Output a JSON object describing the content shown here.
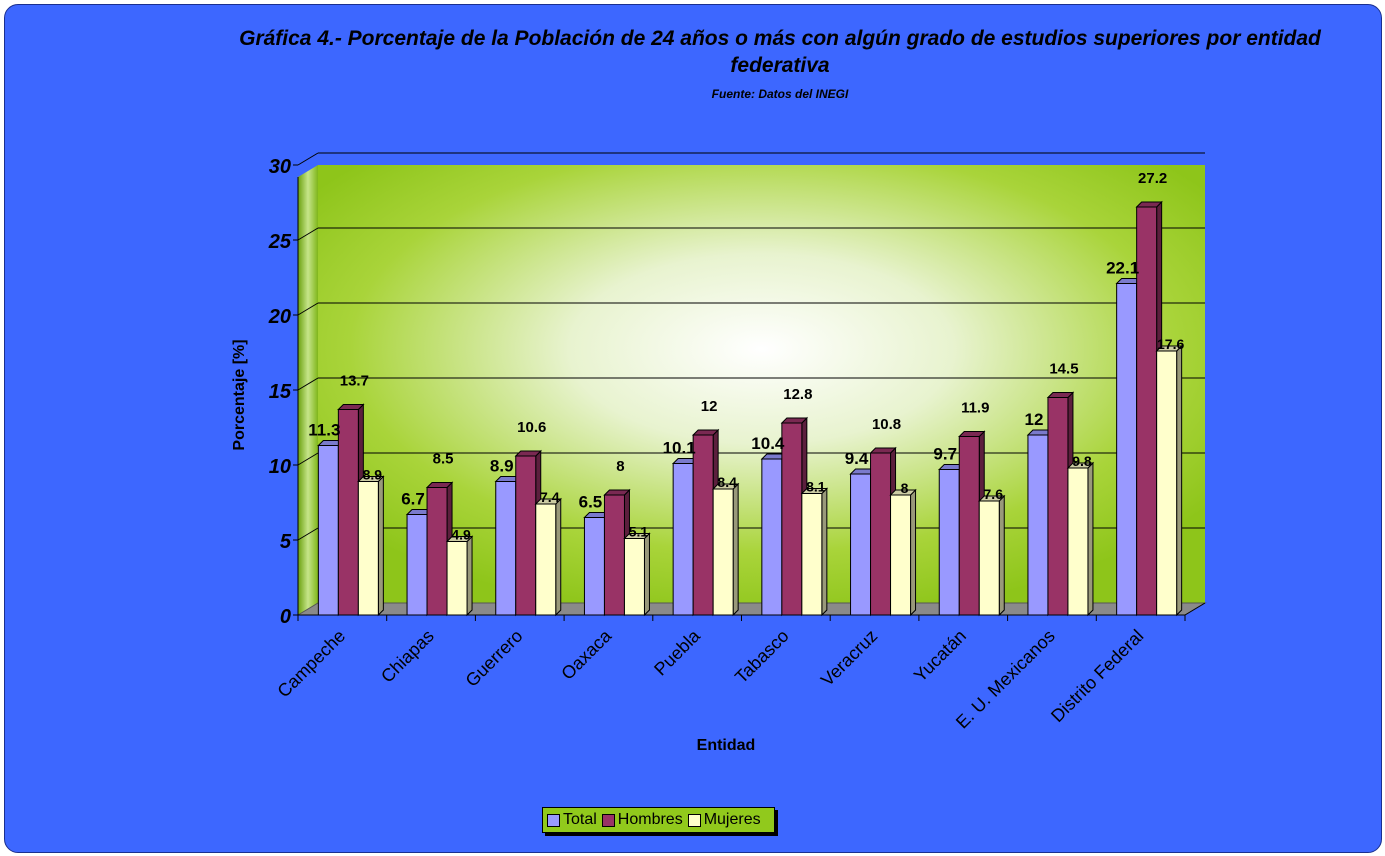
{
  "chart_data": {
    "type": "bar",
    "title": "Gráfica 4.- Porcentaje de la Población de 24 años o más con algún grado de estudios superiores por entidad federativa",
    "subtitle": "Fuente: Datos del INEGI",
    "xlabel": "Entidad",
    "ylabel": "Porcentaje [%]",
    "ylim": [
      0,
      30
    ],
    "yticks": [
      0,
      5,
      10,
      15,
      20,
      25,
      30
    ],
    "grid": true,
    "legend_position": "bottom",
    "categories": [
      "Campeche",
      "Chiapas",
      "Guerrero",
      "Oaxaca",
      "Puebla",
      "Tabasco",
      "Veracruz",
      "Yucatán",
      "E. U. Mexicanos",
      "Distrito Federal"
    ],
    "series": [
      {
        "name": "Total",
        "color": "#9999ff",
        "values": [
          11.3,
          6.7,
          8.9,
          6.5,
          10.1,
          10.4,
          9.4,
          9.7,
          12,
          22.1
        ]
      },
      {
        "name": "Hombres",
        "color": "#993366",
        "values": [
          13.7,
          8.5,
          10.6,
          8,
          12,
          12.8,
          10.8,
          11.9,
          14.5,
          27.2
        ]
      },
      {
        "name": "Mujeres",
        "color": "#ffffcc",
        "values": [
          8.9,
          4.9,
          7.4,
          5.1,
          8.4,
          8.1,
          8,
          7.6,
          9.8,
          17.6
        ]
      }
    ],
    "data_labels": [
      [
        "11.3",
        "6.7",
        "8.9",
        "6.5",
        "10.1",
        "10.4",
        "9.4",
        "9.7",
        "12",
        "22.1"
      ],
      [
        "13.7",
        "8.5",
        "10.6",
        "8",
        "12",
        "12.8",
        "10.8",
        "11.9",
        "14.5",
        "27.2"
      ],
      [
        "8.9",
        "4.9",
        "7.4",
        "5.1",
        "8.4",
        "8.1",
        "8",
        "7.6",
        "9.8",
        "17.6"
      ]
    ]
  },
  "colors": {
    "background": "#3d67ff",
    "plot_wall": "#91c91c",
    "floor": "#808080"
  }
}
